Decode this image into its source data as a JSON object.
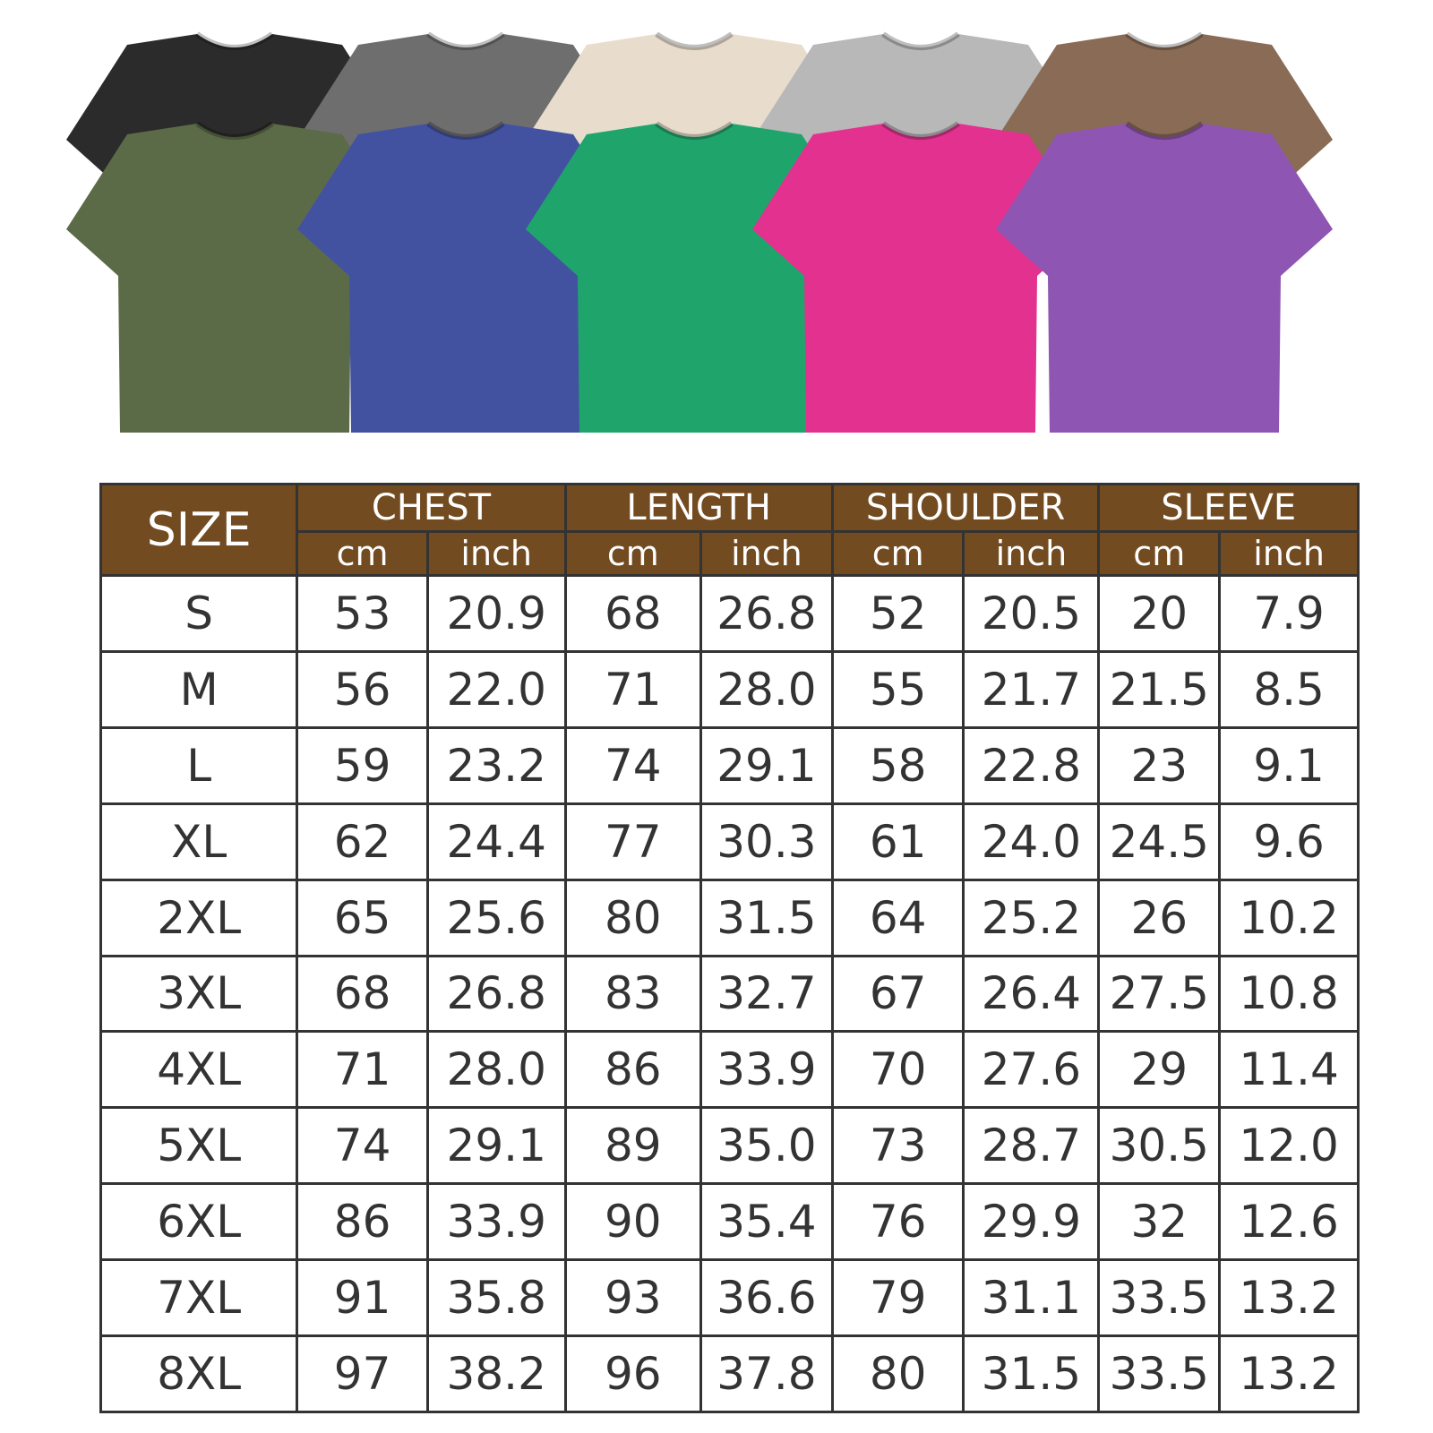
{
  "shirt_colors": {
    "back_row": [
      "#2b2b2b",
      "#6e6e6e",
      "#e8ddcc",
      "#b8b8b8",
      "#8a6b56"
    ],
    "front_row": [
      "#5c6b47",
      "#4352a0",
      "#1fa56c",
      "#e2318f",
      "#8e55b2"
    ]
  },
  "header_color": "#734b20",
  "table": {
    "size_label": "SIZE",
    "groups": [
      "CHEST",
      "LENGTH",
      "SHOULDER",
      "SLEEVE"
    ],
    "units": [
      "cm",
      "inch"
    ],
    "rows": [
      [
        "S",
        "53",
        "20.9",
        "68",
        "26.8",
        "52",
        "20.5",
        "20",
        "7.9"
      ],
      [
        "M",
        "56",
        "22.0",
        "71",
        "28.0",
        "55",
        "21.7",
        "21.5",
        "8.5"
      ],
      [
        "L",
        "59",
        "23.2",
        "74",
        "29.1",
        "58",
        "22.8",
        "23",
        "9.1"
      ],
      [
        "XL",
        "62",
        "24.4",
        "77",
        "30.3",
        "61",
        "24.0",
        "24.5",
        "9.6"
      ],
      [
        "2XL",
        "65",
        "25.6",
        "80",
        "31.5",
        "64",
        "25.2",
        "26",
        "10.2"
      ],
      [
        "3XL",
        "68",
        "26.8",
        "83",
        "32.7",
        "67",
        "26.4",
        "27.5",
        "10.8"
      ],
      [
        "4XL",
        "71",
        "28.0",
        "86",
        "33.9",
        "70",
        "27.6",
        "29",
        "11.4"
      ],
      [
        "5XL",
        "74",
        "29.1",
        "89",
        "35.0",
        "73",
        "28.7",
        "30.5",
        "12.0"
      ],
      [
        "6XL",
        "86",
        "33.9",
        "90",
        "35.4",
        "76",
        "29.9",
        "32",
        "12.6"
      ],
      [
        "7XL",
        "91",
        "35.8",
        "93",
        "36.6",
        "79",
        "31.1",
        "33.5",
        "13.2"
      ],
      [
        "8XL",
        "97",
        "38.2",
        "96",
        "37.8",
        "80",
        "31.5",
        "33.5",
        "13.2"
      ]
    ]
  }
}
